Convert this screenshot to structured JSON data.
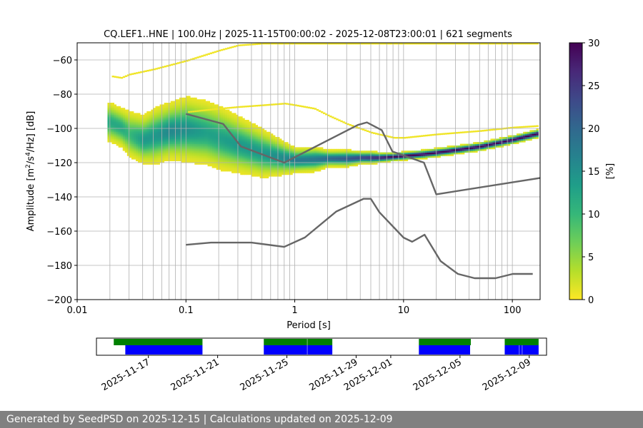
{
  "colors": {
    "viridis": [
      "#fde725",
      "#b5de2b",
      "#6ece58",
      "#35b779",
      "#1f9e89",
      "#26828e",
      "#31688e",
      "#3e4989",
      "#482878",
      "#440154"
    ],
    "noise_model": "#666666",
    "grid": "#b0b0b0",
    "avail_green": "#008000",
    "avail_blue": "#0000ff"
  },
  "chart_data": [
    {
      "type": "heatmap",
      "title": "CQ.LEF1..HNE | 100.0Hz | 2025-11-15T00:00:02 - 2025-12-08T23:00:01 | 621 segments",
      "xlabel": "Period [s]",
      "ylabel_main": "Amplitude [m",
      "ylabel_sup1": "2",
      "ylabel_mid": "/s",
      "ylabel_sup2": "4",
      "ylabel_end": "/Hz] [dB]",
      "xscale": "log",
      "xlim": [
        0.01,
        180
      ],
      "ylim": [
        -200,
        -50
      ],
      "xticks": [
        0.01,
        0.1,
        1,
        10,
        100
      ],
      "xtick_labels": [
        "0.01",
        "0.1",
        "1",
        "10",
        "100"
      ],
      "yticks": [
        -200,
        -180,
        -160,
        -140,
        -120,
        -100,
        -80,
        -60
      ],
      "ytick_labels": [
        "−200",
        "−180",
        "−160",
        "−140",
        "−120",
        "−100",
        "−80",
        "−60"
      ],
      "period_gridlines": [
        0.02,
        0.03,
        0.04,
        0.05,
        0.06,
        0.07,
        0.08,
        0.09,
        0.1,
        0.2,
        0.3,
        0.4,
        0.5,
        0.6,
        0.7,
        0.8,
        0.9,
        1,
        2,
        3,
        4,
        5,
        6,
        7,
        8,
        9,
        10,
        20,
        30,
        40,
        50,
        60,
        70,
        80,
        90,
        100
      ],
      "colorbar": {
        "label": "[%]",
        "range": [
          0,
          30
        ],
        "ticks": [
          0,
          5,
          10,
          15,
          20,
          25,
          30
        ],
        "tick_labels": [
          "0",
          "5",
          "10",
          "15",
          "20",
          "25",
          "30"
        ]
      },
      "psd_ridge": {
        "periods": [
          0.02,
          0.025,
          0.03,
          0.04,
          0.05,
          0.07,
          0.1,
          0.15,
          0.2,
          0.3,
          0.5,
          0.8,
          1,
          1.5,
          2,
          3,
          4,
          5,
          6,
          8,
          10,
          15,
          20,
          30,
          50,
          100,
          180
        ],
        "mean_db": [
          -97,
          -100,
          -104,
          -107,
          -105,
          -102,
          -101,
          -103,
          -106,
          -110,
          -115,
          -118,
          -119,
          -118.5,
          -118,
          -118,
          -117.5,
          -117.5,
          -117.5,
          -117,
          -116.5,
          -115.5,
          -114.5,
          -113,
          -111,
          -107,
          -103
        ],
        "spread_db": [
          5,
          5,
          6,
          6,
          7,
          7,
          8,
          8,
          8,
          7,
          6,
          4,
          3,
          3,
          2,
          2,
          1.5,
          1.5,
          1.2,
          1,
          1,
          1,
          1,
          1,
          1,
          1,
          1
        ],
        "peak_percent": [
          12,
          12,
          10,
          14,
          14,
          16,
          15,
          13,
          13,
          14,
          14,
          16,
          18,
          18,
          20,
          22,
          24,
          26,
          28,
          30,
          30,
          30,
          30,
          30,
          30,
          30,
          30
        ]
      },
      "faint_upper_band": {
        "periods": [
          0.02,
          0.025,
          0.03,
          0.05,
          0.1,
          0.2,
          0.3,
          0.5,
          0.8,
          1,
          2,
          3,
          4,
          5,
          6,
          8,
          10,
          20,
          50,
          100,
          180
        ],
        "db": [
          -70,
          -71,
          -69,
          -66,
          -61,
          -55,
          -52,
          -51,
          -51,
          -51,
          -51,
          -51,
          -51,
          -51,
          -51,
          -51,
          -51,
          -51,
          -51,
          -51,
          -51
        ]
      },
      "faint_hump": {
        "periods": [
          0.1,
          0.2,
          0.3,
          0.5,
          0.8,
          1,
          1.5,
          2,
          3,
          5,
          8,
          10,
          20,
          50,
          100,
          180
        ],
        "db": [
          -91,
          -89,
          -88,
          -87,
          -86,
          -87,
          -89,
          -93,
          -98,
          -103,
          -106,
          -106,
          -104,
          -102,
          -100,
          -99
        ]
      },
      "nhnm": {
        "periods": [
          0.1,
          0.22,
          0.32,
          0.8,
          3.8,
          4.6,
          6.3,
          7.9,
          15.4,
          20,
          354.8
        ],
        "db": [
          -91.5,
          -97.4,
          -110.5,
          -120,
          -98,
          -96.5,
          -101,
          -113.5,
          -120,
          -138.5,
          -126
        ]
      },
      "nlnm": {
        "periods": [
          0.1,
          0.17,
          0.4,
          0.8,
          1.24,
          2.4,
          4.3,
          5,
          6,
          10,
          12,
          15.6,
          21.9,
          31.6,
          45,
          70,
          101,
          154
        ],
        "db": [
          -168,
          -166.7,
          -166.7,
          -169.2,
          -163.7,
          -148.6,
          -141.1,
          -141.1,
          -149,
          -163.8,
          -166.2,
          -162.1,
          -177.5,
          -185,
          -187.5,
          -187.5,
          -185,
          -185
        ]
      }
    },
    {
      "type": "availability",
      "date_range": [
        "2025-11-14",
        "2025-12-10"
      ],
      "tick_dates": [
        "2025-11-17",
        "2025-11-21",
        "2025-11-25",
        "2025-11-29",
        "2025-12-01",
        "2025-12-05",
        "2025-12-09"
      ],
      "tick_labels": [
        "2025-11-17",
        "2025-11-21",
        "2025-11-25",
        "2025-11-29",
        "2025-12-01",
        "2025-12-05",
        "2025-12-09"
      ],
      "data_segments": [
        [
          "2025-11-15T00:00",
          "2025-11-20T03:00"
        ],
        [
          "2025-11-23T16:00",
          "2025-11-26T04:00"
        ],
        [
          "2025-11-26T04:30",
          "2025-11-27T15:00"
        ],
        [
          "2025-12-02T15:00",
          "2025-12-05T15:00"
        ],
        [
          "2025-12-07T14:00",
          "2025-12-09T13:00"
        ]
      ],
      "psd_segments": [
        [
          "2025-11-15T16:00",
          "2025-11-20T03:00"
        ],
        [
          "2025-11-23T16:00",
          "2025-11-26T04:00"
        ],
        [
          "2025-11-26T04:30",
          "2025-11-27T15:00"
        ],
        [
          "2025-12-02T15:00",
          "2025-12-05T14:00"
        ],
        [
          "2025-12-07T14:00",
          "2025-12-08T10:00"
        ],
        [
          "2025-12-08T10:30",
          "2025-12-08T14:00"
        ],
        [
          "2025-12-08T14:30",
          "2025-12-09T13:00"
        ]
      ]
    }
  ],
  "footer": {
    "text": "Generated by SeedPSD on 2025-12-15 | Calculations updated on 2025-12-09"
  }
}
